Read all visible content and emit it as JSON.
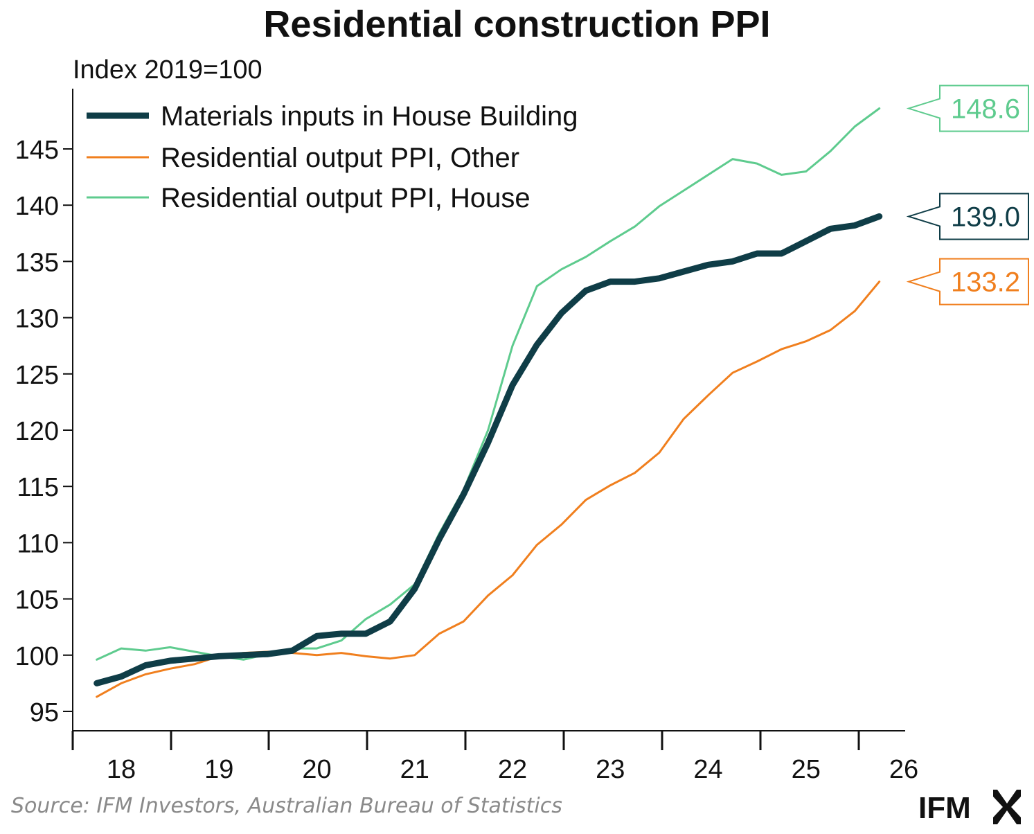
{
  "chart_data": {
    "type": "line",
    "title": "Residential construction PPI",
    "ylabel": "Index 2019=100",
    "ylim": [
      92,
      150
    ],
    "yticks": [
      95,
      100,
      105,
      110,
      115,
      120,
      125,
      130,
      135,
      140,
      145
    ],
    "xticks": [
      "18",
      "19",
      "20",
      "21",
      "22",
      "23",
      "24",
      "25",
      "26"
    ],
    "xlim": [
      2017.6,
      2026.0
    ],
    "grid": false,
    "legend_position": "top-left",
    "x": [
      2017.75,
      2018.0,
      2018.25,
      2018.5,
      2018.75,
      2019.0,
      2019.25,
      2019.5,
      2019.75,
      2020.0,
      2020.25,
      2020.5,
      2020.75,
      2021.0,
      2021.25,
      2021.5,
      2021.75,
      2022.0,
      2022.25,
      2022.5,
      2022.75,
      2023.0,
      2023.25,
      2023.5,
      2023.75,
      2024.0,
      2024.25,
      2024.5,
      2024.75,
      2025.0,
      2025.25,
      2025.5,
      2025.75
    ],
    "series": [
      {
        "name": "Materials inputs in House Building",
        "color": "#0f3d47",
        "width": 9,
        "values": [
          97.5,
          98.1,
          99.1,
          99.5,
          99.7,
          99.9,
          100.0,
          100.1,
          100.4,
          101.7,
          101.9,
          101.9,
          103.0,
          105.9,
          110.3,
          114.3,
          118.9,
          124.0,
          127.6,
          130.4,
          132.4,
          133.2,
          133.2,
          133.5,
          134.1,
          134.7,
          135.0,
          135.7,
          135.7,
          136.8,
          137.9,
          138.2,
          139.0
        ]
      },
      {
        "name": "Residential output PPI, Other",
        "color": "#f07f1e",
        "width": 3,
        "values": [
          96.3,
          97.5,
          98.3,
          98.8,
          99.2,
          99.9,
          100.2,
          100.3,
          100.2,
          100.0,
          100.2,
          99.9,
          99.7,
          100.0,
          101.9,
          103.0,
          105.3,
          107.1,
          109.8,
          111.6,
          113.8,
          115.1,
          116.2,
          118.0,
          121.0,
          123.1,
          125.1,
          126.1,
          127.2,
          127.9,
          128.9,
          130.6,
          133.2
        ]
      },
      {
        "name": "Residential output PPI, House",
        "color": "#5ecb8e",
        "width": 3,
        "values": [
          99.6,
          100.6,
          100.4,
          100.7,
          100.3,
          99.9,
          99.6,
          100.1,
          100.6,
          100.6,
          101.3,
          103.2,
          104.5,
          106.3,
          110.8,
          114.7,
          120.0,
          127.5,
          132.8,
          134.3,
          135.4,
          136.8,
          138.1,
          139.9,
          141.3,
          142.7,
          144.1,
          143.7,
          142.7,
          143.0,
          144.8,
          147.0,
          148.6
        ]
      }
    ],
    "end_labels": [
      {
        "series": "Residential output PPI, House",
        "text": "148.6",
        "color": "#5ecb8e",
        "value": 148.6
      },
      {
        "series": "Materials inputs in House Building",
        "text": "139.0",
        "color": "#0f3d47",
        "value": 139.0
      },
      {
        "series": "Residential output PPI, Other",
        "text": "133.2",
        "color": "#f07f1e",
        "value": 133.2
      }
    ]
  },
  "source": "Source: IFM Investors, Australian Bureau of Statistics",
  "logo": {
    "text": "IFM",
    "icon": "ifm-hourglass-icon",
    "color": "#111111"
  }
}
